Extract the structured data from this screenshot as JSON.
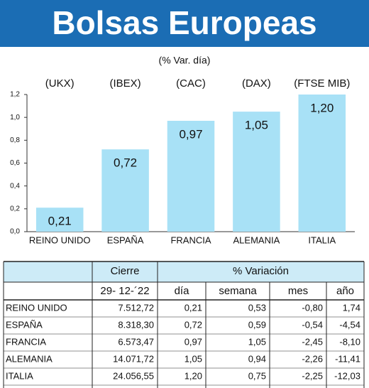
{
  "chart_data": {
    "type": "bar",
    "title": "Bolsas Europeas",
    "subtitle": "(% Var. día)",
    "categories": [
      "REINO UNIDO",
      "ESPAÑA",
      "FRANCIA",
      "ALEMANIA",
      "ITALIA"
    ],
    "tickers": [
      "(UKX)",
      "(IBEX)",
      "(CAC)",
      "(DAX)",
      "(FTSE MIB)"
    ],
    "values": [
      0.21,
      0.72,
      0.97,
      1.05,
      1.2
    ],
    "value_labels": [
      "0,21",
      "0,72",
      "0,97",
      "1,05",
      "1,20"
    ],
    "color": "#a8e1f6",
    "ylim": [
      0,
      1.2
    ],
    "yticks": [
      {
        "value": 0,
        "label": "0,0"
      },
      {
        "value": 0.2,
        "label": "0,2"
      },
      {
        "value": 0.4,
        "label": "0,4"
      },
      {
        "value": 0.6,
        "label": "0,6"
      },
      {
        "value": 0.8,
        "label": "0,8"
      },
      {
        "value": 1.0,
        "label": "1,0"
      },
      {
        "value": 1.2,
        "label": "1,2"
      }
    ]
  },
  "table": {
    "header": [
      "Cierre",
      "% Variación"
    ],
    "subheader": [
      "29- 12-´22",
      "día",
      "semana",
      "mes",
      "año"
    ],
    "rows": [
      [
        "REINO UNIDO",
        "7.512,72",
        "0,21",
        "0,53",
        "-0,80",
        "1,74"
      ],
      [
        "ESPAÑA",
        "8.318,30",
        "0,72",
        "0,59",
        "-0,54",
        "-4,54"
      ],
      [
        "FRANCIA",
        "6.573,47",
        "0,97",
        "1,05",
        "-2,45",
        "-8,10"
      ],
      [
        "ALEMANIA",
        "14.071,72",
        "1,05",
        "0,94",
        "-2,26",
        "-11,41"
      ],
      [
        "ITALIA",
        "24.056,55",
        "1,20",
        "0,75",
        "-2,25",
        "-12,03"
      ]
    ]
  }
}
